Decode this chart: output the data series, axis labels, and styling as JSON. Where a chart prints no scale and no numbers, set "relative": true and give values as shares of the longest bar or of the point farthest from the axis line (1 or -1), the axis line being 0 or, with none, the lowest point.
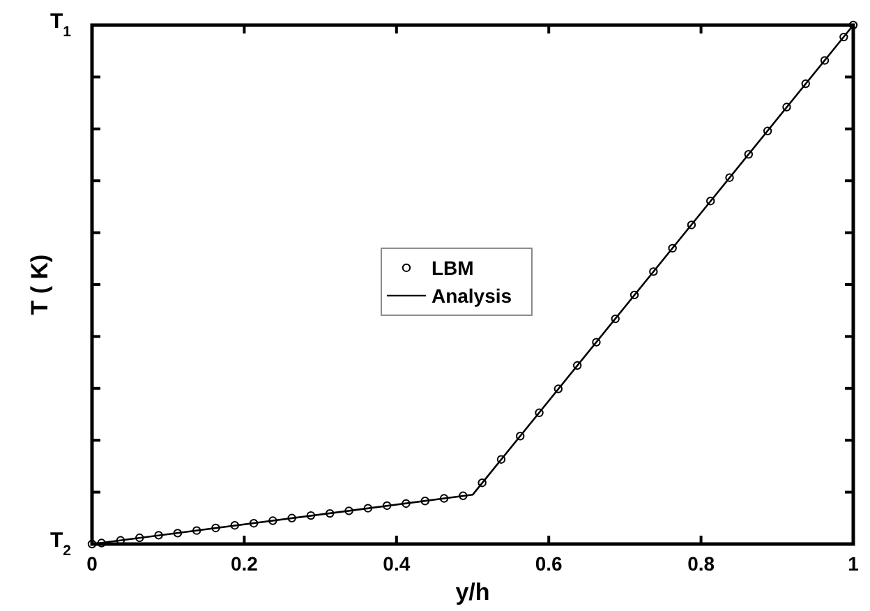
{
  "chart_data": {
    "type": "line",
    "xlabel": "y/h",
    "ylabel": "T ( K)",
    "xlim": [
      0,
      1
    ],
    "xticks": [
      0,
      0.2,
      0.4,
      0.6,
      0.8,
      1
    ],
    "relative": true,
    "annotations": [
      "T$_{1}$",
      "T$_{2}$"
    ],
    "grid": false,
    "legend": "center",
    "series": [
      {
        "name": "LBM",
        "type": "scatter",
        "marker": "circle",
        "color": "#000000",
        "x": [
          0,
          0.0125,
          0.0375,
          0.0625,
          0.0875,
          0.1125,
          0.1375,
          0.1625,
          0.1875,
          0.2125,
          0.2375,
          0.2625,
          0.2875,
          0.3125,
          0.3375,
          0.3625,
          0.3875,
          0.4125,
          0.4375,
          0.4625,
          0.4875,
          0.5125,
          0.5375,
          0.5625,
          0.5875,
          0.6125,
          0.6375,
          0.6625,
          0.6875,
          0.7125,
          0.7375,
          0.7625,
          0.7875,
          0.8125,
          0.8375,
          0.8625,
          0.8875,
          0.9125,
          0.9375,
          0.9625,
          0.9875,
          1
        ],
        "values": [
          0,
          0.002,
          0.007,
          0.012,
          0.017,
          0.021,
          0.026,
          0.031,
          0.036,
          0.04,
          0.045,
          0.05,
          0.055,
          0.059,
          0.064,
          0.069,
          0.074,
          0.078,
          0.083,
          0.088,
          0.093,
          0.118,
          0.163,
          0.208,
          0.253,
          0.299,
          0.344,
          0.389,
          0.434,
          0.48,
          0.525,
          0.57,
          0.615,
          0.661,
          0.706,
          0.751,
          0.796,
          0.842,
          0.887,
          0.932,
          0.977,
          1
        ]
      },
      {
        "name": "Analysis",
        "marker": "none",
        "line_style": "solid",
        "color": "#000000",
        "x": [
          0,
          0.5,
          1
        ],
        "values": [
          0,
          0.095,
          1
        ]
      }
    ]
  }
}
